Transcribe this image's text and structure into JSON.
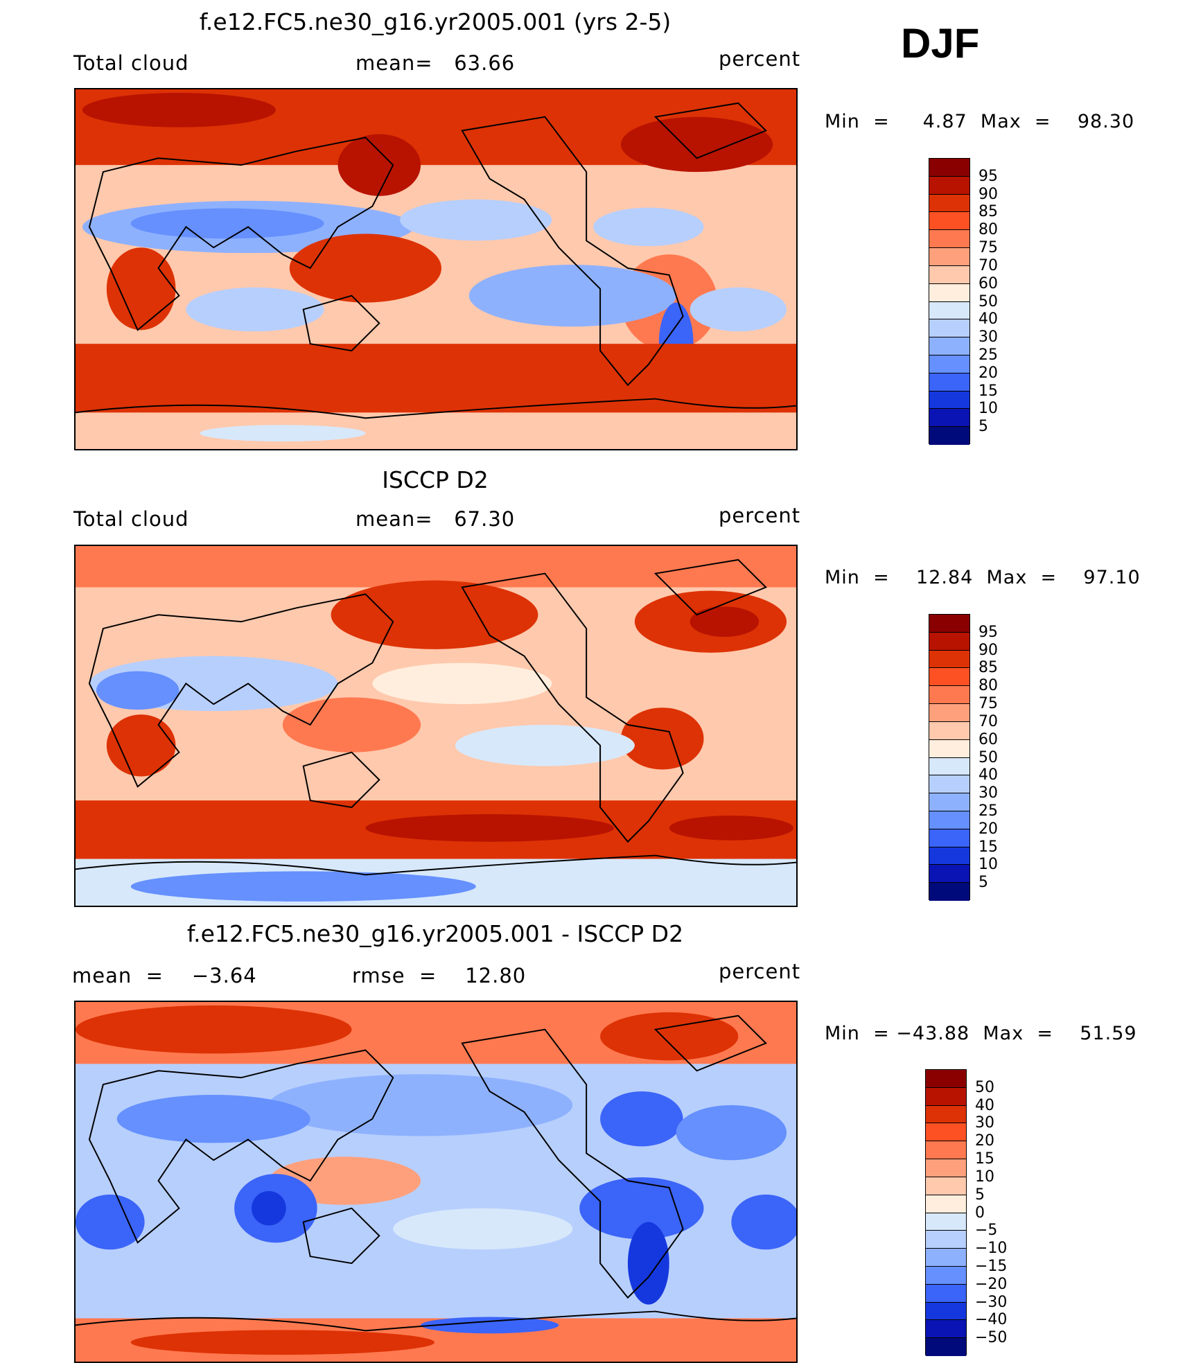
{
  "season": "DJF",
  "panels": [
    {
      "title": "f.e12.FC5.ne30_g16.yr2005.001 (yrs 2-5)",
      "left_label": "Total cloud",
      "center_label": "mean=   63.66",
      "right_label": "percent",
      "minmax": "Min  =     4.87  Max  =    98.30",
      "colorbar": {
        "labels": [
          "95",
          "90",
          "85",
          "80",
          "75",
          "70",
          "60",
          "50",
          "40",
          "30",
          "25",
          "20",
          "15",
          "10",
          "5"
        ],
        "colors": [
          "#8a0000",
          "#b81300",
          "#dd3205",
          "#fd5123",
          "#ff7950",
          "#ffa07c",
          "#ffc9ad",
          "#ffeedd",
          "#d7e8fb",
          "#b7cffd",
          "#8eb1fe",
          "#6590fe",
          "#3b64f8",
          "#1538de",
          "#0a14b4",
          "#000a7a"
        ]
      }
    },
    {
      "title": "ISCCP D2",
      "left_label": "Total cloud",
      "center_label": "mean=   67.30",
      "right_label": "percent",
      "minmax": "Min  =    12.84  Max  =    97.10",
      "colorbar": {
        "labels": [
          "95",
          "90",
          "85",
          "80",
          "75",
          "70",
          "60",
          "50",
          "40",
          "30",
          "25",
          "20",
          "15",
          "10",
          "5"
        ],
        "colors": [
          "#8a0000",
          "#b81300",
          "#dd3205",
          "#fd5123",
          "#ff7950",
          "#ffa07c",
          "#ffc9ad",
          "#ffeedd",
          "#d7e8fb",
          "#b7cffd",
          "#8eb1fe",
          "#6590fe",
          "#3b64f8",
          "#1538de",
          "#0a14b4",
          "#000a7a"
        ]
      }
    },
    {
      "title": "f.e12.FC5.ne30_g16.yr2005.001 - ISCCP D2",
      "left_label": "mean  =    −3.64",
      "center_label": "rmse  =    12.80",
      "right_label": "percent",
      "minmax": "Min  = −43.88  Max  =    51.59",
      "colorbar": {
        "labels": [
          "50",
          "40",
          "30",
          "20",
          "15",
          "10",
          "5",
          "0",
          "−5",
          "−10",
          "−15",
          "−20",
          "−30",
          "−40",
          "−50"
        ],
        "colors": [
          "#8a0000",
          "#b81300",
          "#dd3205",
          "#fd5123",
          "#ff7950",
          "#ffa07c",
          "#ffc9ad",
          "#ffeedd",
          "#d7e8fb",
          "#b7cffd",
          "#8eb1fe",
          "#6590fe",
          "#3b64f8",
          "#1538de",
          "#0a14b4",
          "#000a7a"
        ]
      }
    }
  ],
  "map_colors": {
    "base": "#ffc9ad",
    "deep_red": "#b81300",
    "red": "#dd3205",
    "orange": "#ff7950",
    "light_orange": "#ffa07c",
    "pale": "#ffeedd",
    "pale_blue": "#d7e8fb",
    "light_blue": "#b7cffd",
    "blue": "#8eb1fe",
    "mid_blue": "#3b64f8",
    "dark_blue": "#0a14b4"
  }
}
